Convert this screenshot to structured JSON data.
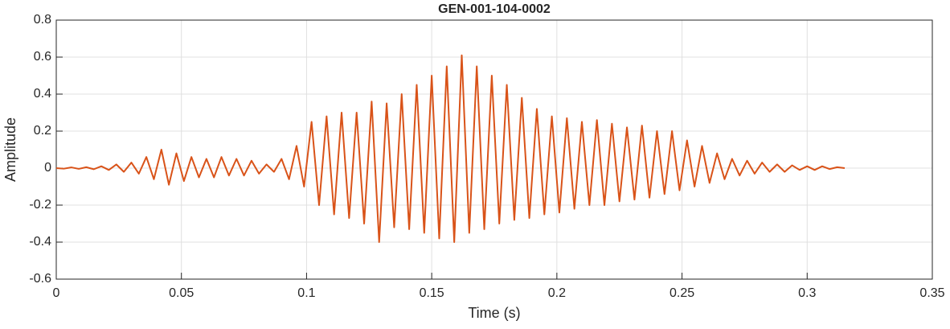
{
  "chart_data": {
    "type": "line",
    "title": "GEN-001-104-0002",
    "xlabel": "Time (s)",
    "ylabel": "Amplitude",
    "x": [
      0,
      0.003,
      0.006,
      0.009,
      0.012,
      0.015,
      0.018,
      0.021,
      0.024,
      0.027,
      0.03,
      0.033,
      0.036,
      0.039,
      0.042,
      0.045,
      0.048,
      0.051,
      0.054,
      0.057,
      0.06,
      0.063,
      0.066,
      0.069,
      0.072,
      0.075,
      0.078,
      0.081,
      0.084,
      0.087,
      0.09,
      0.093,
      0.096,
      0.099,
      0.102,
      0.105,
      0.108,
      0.111,
      0.114,
      0.117,
      0.12,
      0.123,
      0.126,
      0.129,
      0.132,
      0.135,
      0.138,
      0.141,
      0.144,
      0.147,
      0.15,
      0.153,
      0.156,
      0.159,
      0.162,
      0.165,
      0.168,
      0.171,
      0.174,
      0.177,
      0.18,
      0.183,
      0.186,
      0.189,
      0.192,
      0.195,
      0.198,
      0.201,
      0.204,
      0.207,
      0.21,
      0.213,
      0.216,
      0.219,
      0.222,
      0.225,
      0.228,
      0.231,
      0.234,
      0.237,
      0.24,
      0.243,
      0.246,
      0.249,
      0.252,
      0.255,
      0.258,
      0.261,
      0.264,
      0.267,
      0.27,
      0.273,
      0.276,
      0.279,
      0.282,
      0.285,
      0.288,
      0.291,
      0.294,
      0.297,
      0.3,
      0.303,
      0.306,
      0.309,
      0.312,
      0.315
    ],
    "series": [
      {
        "color": "#d95319",
        "values": [
          0,
          -0.003,
          0.004,
          -0.004,
          0.005,
          -0.006,
          0.01,
          -0.01,
          0.02,
          -0.02,
          0.03,
          -0.03,
          0.06,
          -0.06,
          0.1,
          -0.09,
          0.08,
          -0.07,
          0.06,
          -0.05,
          0.05,
          -0.05,
          0.06,
          -0.04,
          0.05,
          -0.04,
          0.04,
          -0.03,
          0.02,
          -0.02,
          0.05,
          -0.06,
          0.12,
          -0.1,
          0.25,
          -0.2,
          0.28,
          -0.25,
          0.3,
          -0.27,
          0.3,
          -0.3,
          0.36,
          -0.4,
          0.35,
          -0.32,
          0.4,
          -0.33,
          0.45,
          -0.35,
          0.5,
          -0.38,
          0.55,
          -0.4,
          0.61,
          -0.35,
          0.55,
          -0.33,
          0.5,
          -0.3,
          0.45,
          -0.28,
          0.38,
          -0.27,
          0.32,
          -0.25,
          0.28,
          -0.24,
          0.27,
          -0.22,
          0.25,
          -0.2,
          0.26,
          -0.2,
          0.24,
          -0.18,
          0.22,
          -0.17,
          0.23,
          -0.16,
          0.2,
          -0.14,
          0.2,
          -0.12,
          0.15,
          -0.1,
          0.12,
          -0.08,
          0.08,
          -0.06,
          0.05,
          -0.04,
          0.04,
          -0.03,
          0.03,
          -0.02,
          0.02,
          -0.02,
          0.015,
          -0.01,
          0.01,
          -0.01,
          0.01,
          -0.005,
          0.005,
          0
        ]
      }
    ],
    "xlim": [
      0,
      0.35
    ],
    "xticks": [
      0,
      0.05,
      0.1,
      0.15,
      0.2,
      0.25,
      0.3,
      0.35
    ],
    "ylim": [
      -0.6,
      0.8
    ],
    "yticks": [
      -0.6,
      -0.4,
      -0.2,
      0,
      0.2,
      0.4,
      0.6,
      0.8
    ],
    "grid": true
  }
}
